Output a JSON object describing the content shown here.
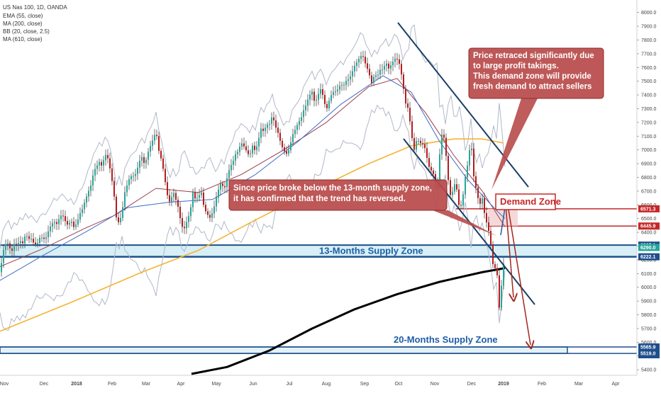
{
  "chart_data": {
    "type": "candlestick",
    "symbol": "US Nas 100, 1D, OANDA",
    "indicators": [
      "EMA (55, close)",
      "MA (200, close)",
      "BB (20, close, 2.5)",
      "MA (610, close)"
    ],
    "x_ticks": [
      "Nov",
      "Dec",
      "2018",
      "Feb",
      "Mar",
      "Apr",
      "May",
      "Jun",
      "Jul",
      "Aug",
      "Sep",
      "Oct",
      "Nov",
      "Dec",
      "2019",
      "Feb",
      "Mar",
      "Apr"
    ],
    "y_ticks": [
      8000,
      7900,
      7800,
      7700,
      7600,
      7500,
      7400,
      7300,
      7200,
      7100,
      7000,
      6900,
      6800,
      6700,
      6600,
      6500,
      6400,
      6300,
      6200,
      6100,
      6000,
      5900,
      5800,
      5700,
      5600,
      5500,
      5400
    ],
    "ylim": [
      5370,
      8060
    ],
    "price_tags": [
      {
        "label": "6571.3",
        "value": 6571.3,
        "color": "#c62828"
      },
      {
        "label": "6445.9",
        "value": 6445.9,
        "color": "#c62828"
      },
      {
        "label": "6307.1",
        "value": 6307.1,
        "color": "#1e4f8c"
      },
      {
        "label": "6290.0",
        "value": 6290.0,
        "color": "#26a69a"
      },
      {
        "label": "6222.1",
        "value": 6222.1,
        "color": "#1e4f8c"
      },
      {
        "label": "5565.9",
        "value": 5565.9,
        "color": "#1e4f8c"
      },
      {
        "label": "5565.9",
        "value": 5565.9,
        "color": "#1e4f8c"
      },
      {
        "label": "5519.0",
        "value": 5519.0,
        "color": "#1e4f8c"
      }
    ],
    "zones": [
      {
        "name": "13-Months Supply Zone",
        "from": 6222.1,
        "to": 6307.1
      },
      {
        "name": "20-Months Supply Zone",
        "from": 5519.0,
        "to": 5565.9
      },
      {
        "name": "Demand Zone",
        "from": 6445.9,
        "to": 6571.3
      }
    ],
    "annotations": [
      {
        "text": "Price retraced significantly due to large profit takings. This demand zone will provide fresh demand to attract sellers",
        "lines": [
          "Price retraced significantly due",
          "to large profit takings.",
          "This demand zone will provide",
          "fresh demand to attract sellers"
        ]
      },
      {
        "text": "Since price broke below the 13-month supply zone, it has confirmed that the trend has reversed.",
        "lines": [
          "Since price broke below the 13-month supply zone,",
          "it has confirmed that the trend has reversed."
        ]
      }
    ],
    "price_path": [
      [
        0,
        6110
      ],
      [
        4,
        6250
      ],
      [
        8,
        6300
      ],
      [
        12,
        6330
      ],
      [
        16,
        6260
      ],
      [
        20,
        6310
      ],
      [
        24,
        6290
      ],
      [
        28,
        6350
      ],
      [
        32,
        6330
      ],
      [
        36,
        6380
      ],
      [
        40,
        6340
      ],
      [
        44,
        6360
      ],
      [
        48,
        6330
      ],
      [
        52,
        6300
      ],
      [
        56,
        6350
      ],
      [
        60,
        6370
      ],
      [
        64,
        6360
      ],
      [
        68,
        6400
      ],
      [
        72,
        6440
      ],
      [
        76,
        6490
      ],
      [
        80,
        6470
      ],
      [
        84,
        6500
      ],
      [
        88,
        6520
      ],
      [
        92,
        6490
      ],
      [
        96,
        6460
      ],
      [
        100,
        6480
      ],
      [
        104,
        6430
      ],
      [
        108,
        6470
      ],
      [
        112,
        6540
      ],
      [
        116,
        6560
      ],
      [
        120,
        6620
      ],
      [
        124,
        6700
      ],
      [
        128,
        6750
      ],
      [
        132,
        6830
      ],
      [
        136,
        6870
      ],
      [
        140,
        6920
      ],
      [
        144,
        6890
      ],
      [
        148,
        6960
      ],
      [
        152,
        6930
      ],
      [
        156,
        6850
      ],
      [
        160,
        6720
      ],
      [
        164,
        6500
      ],
      [
        168,
        6450
      ],
      [
        172,
        6560
      ],
      [
        176,
        6700
      ],
      [
        180,
        6750
      ],
      [
        184,
        6800
      ],
      [
        188,
        6820
      ],
      [
        192,
        6840
      ],
      [
        196,
        6900
      ],
      [
        200,
        6940
      ],
      [
        204,
        6900
      ],
      [
        208,
        6980
      ],
      [
        212,
        7020
      ],
      [
        216,
        7070
      ],
      [
        220,
        7150
      ],
      [
        224,
        7000
      ],
      [
        228,
        6910
      ],
      [
        232,
        6790
      ],
      [
        236,
        6680
      ],
      [
        240,
        6620
      ],
      [
        244,
        6690
      ],
      [
        248,
        6630
      ],
      [
        252,
        6580
      ],
      [
        256,
        6450
      ],
      [
        260,
        6420
      ],
      [
        264,
        6480
      ],
      [
        268,
        6560
      ],
      [
        272,
        6700
      ],
      [
        276,
        6620
      ],
      [
        280,
        6660
      ],
      [
        284,
        6700
      ],
      [
        288,
        6580
      ],
      [
        292,
        6520
      ],
      [
        296,
        6500
      ],
      [
        300,
        6560
      ],
      [
        304,
        6640
      ],
      [
        308,
        6700
      ],
      [
        312,
        6760
      ],
      [
        316,
        6720
      ],
      [
        320,
        6800
      ],
      [
        324,
        6860
      ],
      [
        328,
        6900
      ],
      [
        332,
        6980
      ],
      [
        336,
        7000
      ],
      [
        340,
        7040
      ],
      [
        344,
        7020
      ],
      [
        348,
        7000
      ],
      [
        352,
        6960
      ],
      [
        356,
        7020
      ],
      [
        360,
        6980
      ],
      [
        364,
        7080
      ],
      [
        368,
        7160
      ],
      [
        372,
        7120
      ],
      [
        376,
        7180
      ],
      [
        380,
        7200
      ],
      [
        384,
        7260
      ],
      [
        388,
        7160
      ],
      [
        392,
        7120
      ],
      [
        396,
        7060
      ],
      [
        400,
        7000
      ],
      [
        404,
        6960
      ],
      [
        408,
        7000
      ],
      [
        412,
        7120
      ],
      [
        416,
        7150
      ],
      [
        420,
        7180
      ],
      [
        424,
        7220
      ],
      [
        428,
        7300
      ],
      [
        432,
        7340
      ],
      [
        436,
        7380
      ],
      [
        440,
        7420
      ],
      [
        444,
        7350
      ],
      [
        448,
        7400
      ],
      [
        452,
        7430
      ],
      [
        456,
        7380
      ],
      [
        460,
        7300
      ],
      [
        464,
        7360
      ],
      [
        468,
        7400
      ],
      [
        472,
        7420
      ],
      [
        476,
        7450
      ],
      [
        480,
        7480
      ],
      [
        484,
        7450
      ],
      [
        488,
        7500
      ],
      [
        492,
        7530
      ],
      [
        496,
        7560
      ],
      [
        500,
        7600
      ],
      [
        504,
        7640
      ],
      [
        508,
        7700
      ],
      [
        512,
        7680
      ],
      [
        516,
        7600
      ],
      [
        520,
        7560
      ],
      [
        524,
        7500
      ],
      [
        528,
        7550
      ],
      [
        532,
        7520
      ],
      [
        536,
        7580
      ],
      [
        540,
        7600
      ],
      [
        544,
        7640
      ],
      [
        548,
        7580
      ],
      [
        552,
        7620
      ],
      [
        556,
        7680
      ],
      [
        560,
        7660
      ],
      [
        564,
        7600
      ],
      [
        568,
        7480
      ],
      [
        572,
        7350
      ],
      [
        576,
        7300
      ],
      [
        580,
        7100
      ],
      [
        584,
        7000
      ],
      [
        588,
        7100
      ],
      [
        592,
        7050
      ],
      [
        596,
        7030
      ],
      [
        600,
        7000
      ],
      [
        604,
        6900
      ],
      [
        608,
        6850
      ],
      [
        612,
        6800
      ],
      [
        616,
        6700
      ],
      [
        620,
        6980
      ],
      [
        624,
        7160
      ],
      [
        628,
        7000
      ],
      [
        632,
        6780
      ],
      [
        636,
        6650
      ],
      [
        640,
        6760
      ],
      [
        644,
        6700
      ],
      [
        648,
        6560
      ],
      [
        652,
        6650
      ],
      [
        656,
        6800
      ],
      [
        660,
        6900
      ],
      [
        664,
        7080
      ],
      [
        668,
        6820
      ],
      [
        672,
        6700
      ],
      [
        676,
        6580
      ],
      [
        680,
        6650
      ],
      [
        684,
        6520
      ],
      [
        688,
        6440
      ],
      [
        692,
        6300
      ],
      [
        696,
        6120
      ],
      [
        700,
        6180
      ],
      [
        704,
        5850
      ],
      [
        708,
        6050
      ],
      [
        712,
        6280
      ]
    ],
    "series": [
      {
        "name": "EMA (55, close)",
        "points": [
          [
            0,
            6150
          ],
          [
            60,
            6280
          ],
          [
            120,
            6430
          ],
          [
            160,
            6520
          ],
          [
            220,
            6720
          ],
          [
            280,
            6690
          ],
          [
            340,
            6820
          ],
          [
            400,
            7000
          ],
          [
            460,
            7200
          ],
          [
            520,
            7460
          ],
          [
            560,
            7520
          ],
          [
            600,
            7270
          ],
          [
            640,
            6960
          ],
          [
            680,
            6700
          ],
          [
            712,
            6440
          ]
        ],
        "color": "#9c3d4a"
      },
      {
        "name": "MA (200, close)",
        "points": [
          [
            0,
            5680
          ],
          [
            100,
            5890
          ],
          [
            200,
            6110
          ],
          [
            280,
            6270
          ],
          [
            360,
            6490
          ],
          [
            440,
            6700
          ],
          [
            520,
            6900
          ],
          [
            580,
            7030
          ],
          [
            640,
            7080
          ],
          [
            680,
            7080
          ],
          [
            710,
            7050
          ]
        ],
        "color": "#f5b335"
      },
      {
        "name": "BB basis",
        "points": [
          [
            0,
            6050
          ],
          [
            60,
            6230
          ],
          [
            120,
            6400
          ],
          [
            180,
            6580
          ],
          [
            240,
            6620
          ],
          [
            300,
            6640
          ],
          [
            360,
            6820
          ],
          [
            420,
            7060
          ],
          [
            480,
            7330
          ],
          [
            540,
            7540
          ],
          [
            580,
            7420
          ],
          [
            620,
            7060
          ],
          [
            660,
            6780
          ],
          [
            700,
            6560
          ],
          [
            712,
            6500
          ]
        ],
        "color": "#3f6cc6"
      },
      {
        "name": "MA (610, close)",
        "points": [
          [
            270,
            5370
          ],
          [
            320,
            5420
          ],
          [
            380,
            5540
          ],
          [
            440,
            5700
          ],
          [
            500,
            5840
          ],
          [
            560,
            5950
          ],
          [
            620,
            6040
          ],
          [
            680,
            6110
          ],
          [
            712,
            6140
          ]
        ],
        "color": "#000000"
      }
    ]
  }
}
